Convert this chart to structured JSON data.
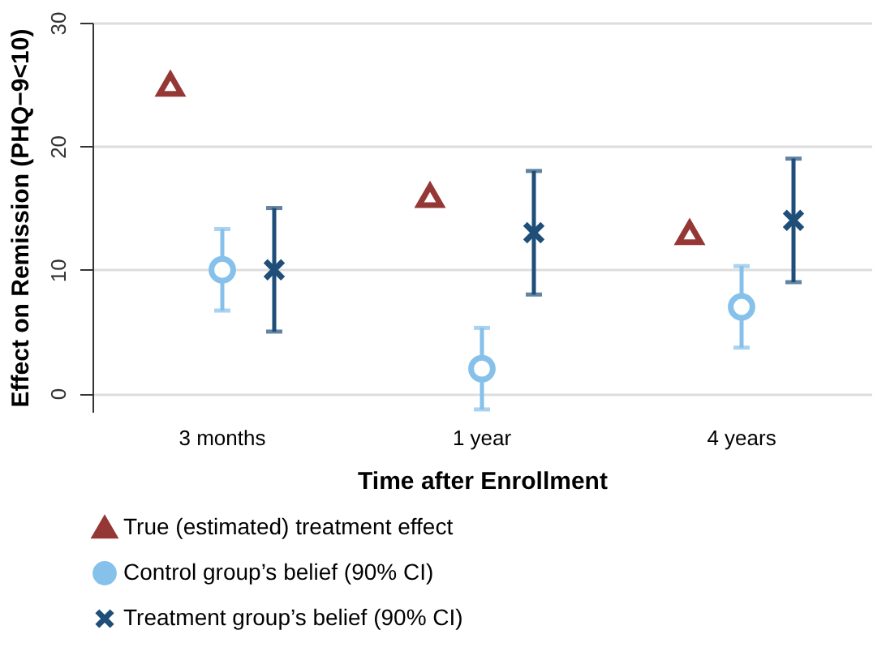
{
  "chart_data": {
    "type": "scatter",
    "xlabel": "Time after Enrollment",
    "ylabel": "Effect on Remission (PHQ−9<10)",
    "categories": [
      "3 months",
      "1 year",
      "4 years"
    ],
    "series": [
      {
        "name": "True (estimated) treatment effect",
        "color": "#953735",
        "marker": "triangle",
        "values": [
          25,
          16,
          13
        ]
      },
      {
        "name": "Control group’s belief (90% CI)",
        "color": "#85c1ea",
        "marker": "circle",
        "values": [
          10,
          2,
          7
        ],
        "errors": [
          [
            6.7,
            13.3
          ],
          [
            -1.3,
            5.3
          ],
          [
            3.7,
            10.3
          ]
        ]
      },
      {
        "name": "Treatment group’s belief (90% CI)",
        "color": "#1f4e79",
        "marker": "cross",
        "values": [
          10,
          13,
          14
        ],
        "errors": [
          [
            5,
            15
          ],
          [
            8,
            18
          ],
          [
            9,
            19
          ]
        ]
      }
    ],
    "ylim": [
      -1.5,
      30
    ],
    "yticks": [
      0,
      10,
      20,
      30
    ],
    "grid": "y",
    "legend": "bottom"
  }
}
